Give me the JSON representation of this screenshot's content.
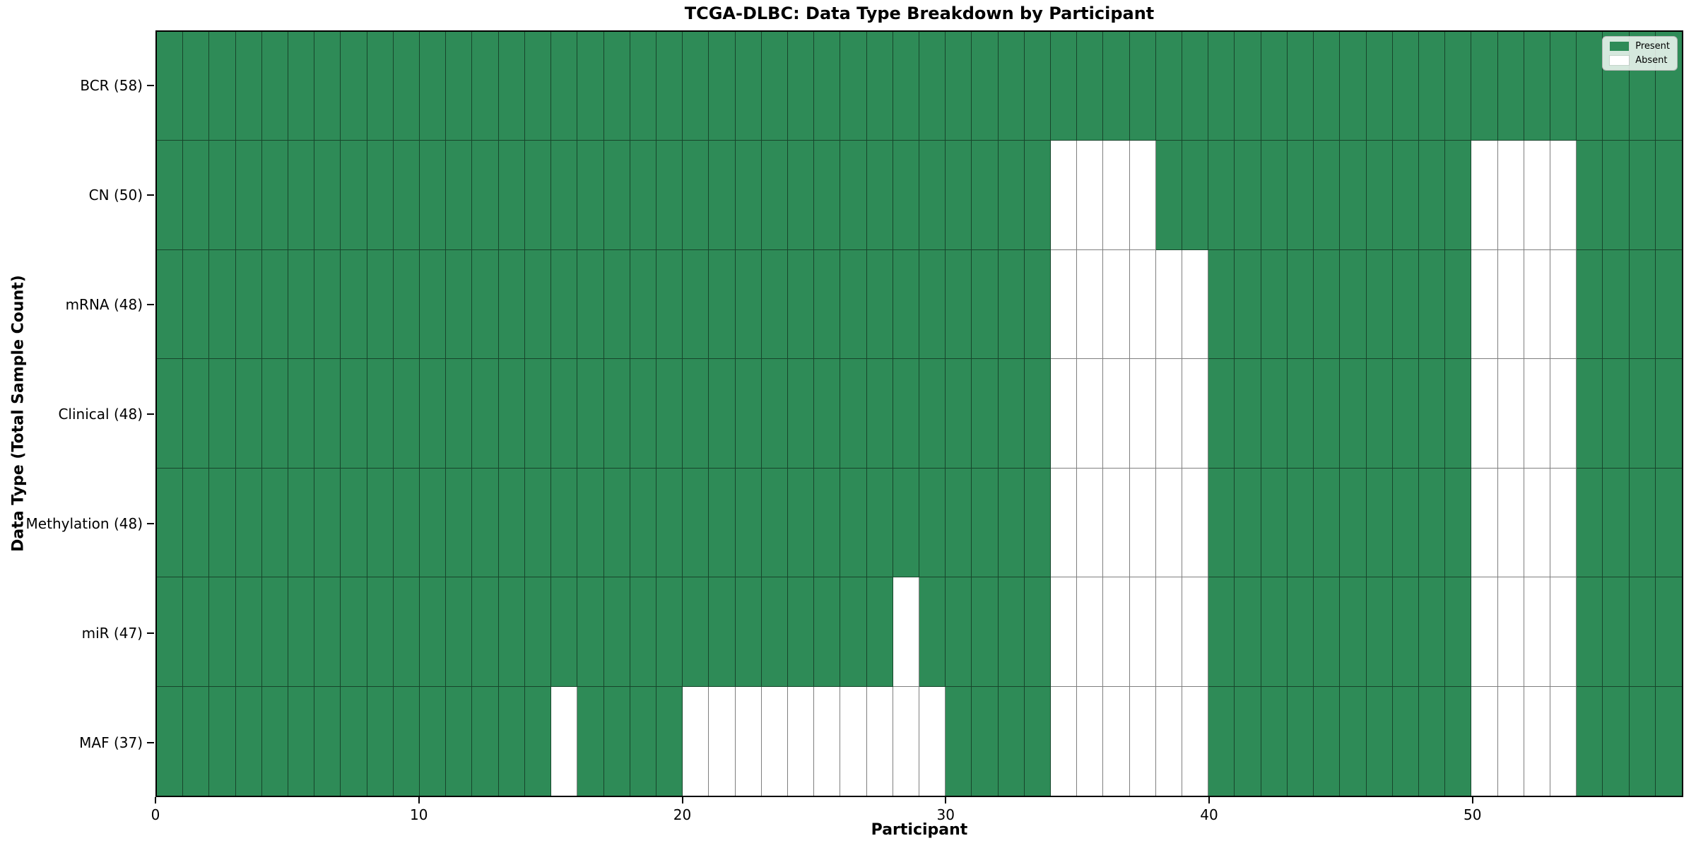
{
  "title": "TCGA-DLBC: Data Type Breakdown by Participant",
  "x_axis": {
    "label": "Participant",
    "ticks": [
      0,
      10,
      20,
      30,
      40,
      50
    ]
  },
  "y_axis": {
    "label": "Data Type (Total Sample Count)"
  },
  "legend": [
    {
      "label": "Present",
      "color": "#2e8b57"
    },
    {
      "label": "Absent",
      "color": "#ffffff"
    }
  ],
  "chart_data": {
    "type": "heatmap",
    "title": "TCGA-DLBC: Data Type Breakdown by Participant",
    "xlabel": "Participant",
    "ylabel": "Data Type (Total Sample Count)",
    "x_range": [
      0,
      58
    ],
    "x_ticks": [
      0,
      10,
      20,
      30,
      40,
      50
    ],
    "n_participants": 58,
    "legend_position": "upper right",
    "colors": {
      "present": "#2e8b57",
      "absent": "#ffffff",
      "gridline": "rgba(0,0,0,0.5)"
    },
    "value_legend": {
      "present": "Present",
      "absent": "Absent"
    },
    "rows": [
      {
        "label": "BCR (58)",
        "data_type": "BCR",
        "present_count": 58,
        "absent": []
      },
      {
        "label": "CN (50)",
        "data_type": "CN",
        "present_count": 50,
        "absent": [
          34,
          35,
          36,
          37,
          50,
          51,
          52,
          53
        ]
      },
      {
        "label": "mRNA (48)",
        "data_type": "mRNA",
        "present_count": 48,
        "absent": [
          34,
          35,
          36,
          37,
          38,
          39,
          50,
          51,
          52,
          53
        ]
      },
      {
        "label": "Clinical (48)",
        "data_type": "Clinical",
        "present_count": 48,
        "absent": [
          34,
          35,
          36,
          37,
          38,
          39,
          50,
          51,
          52,
          53
        ]
      },
      {
        "label": "Methylation (48)",
        "data_type": "Methylation",
        "present_count": 48,
        "absent": [
          34,
          35,
          36,
          37,
          38,
          39,
          50,
          51,
          52,
          53
        ]
      },
      {
        "label": "miR (47)",
        "data_type": "miR",
        "present_count": 47,
        "absent": [
          28,
          34,
          35,
          36,
          37,
          38,
          39,
          50,
          51,
          52,
          53
        ]
      },
      {
        "label": "MAF (37)",
        "data_type": "MAF",
        "present_count": 37,
        "absent": [
          15,
          20,
          21,
          22,
          23,
          24,
          25,
          26,
          27,
          28,
          29,
          34,
          35,
          36,
          37,
          38,
          39,
          50,
          51,
          52,
          53
        ]
      }
    ]
  }
}
